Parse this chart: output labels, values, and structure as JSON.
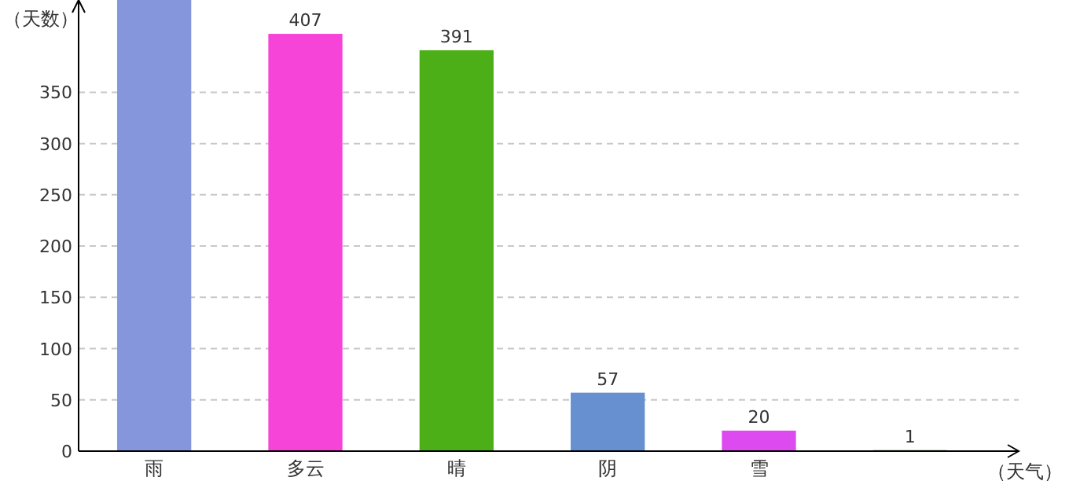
{
  "chart_data": {
    "type": "bar",
    "xlabel": "（天气）",
    "ylabel": "（天数）",
    "categories": [
      "雨",
      "多云",
      "晴",
      "阴",
      "雪",
      null
    ],
    "values": [
      440,
      407,
      391,
      57,
      20,
      1
    ],
    "colors": [
      "#8596dc",
      "#f744d8",
      "#4caf17",
      "#6690d0",
      "#dd4af0",
      "#3a9a3a"
    ],
    "value_labels": [
      null,
      "407",
      "391",
      "57",
      "20",
      "1"
    ],
    "ylim": [
      0,
      440
    ],
    "yticks": [
      0,
      50,
      100,
      150,
      200,
      250,
      300,
      350
    ],
    "grid": "y"
  }
}
